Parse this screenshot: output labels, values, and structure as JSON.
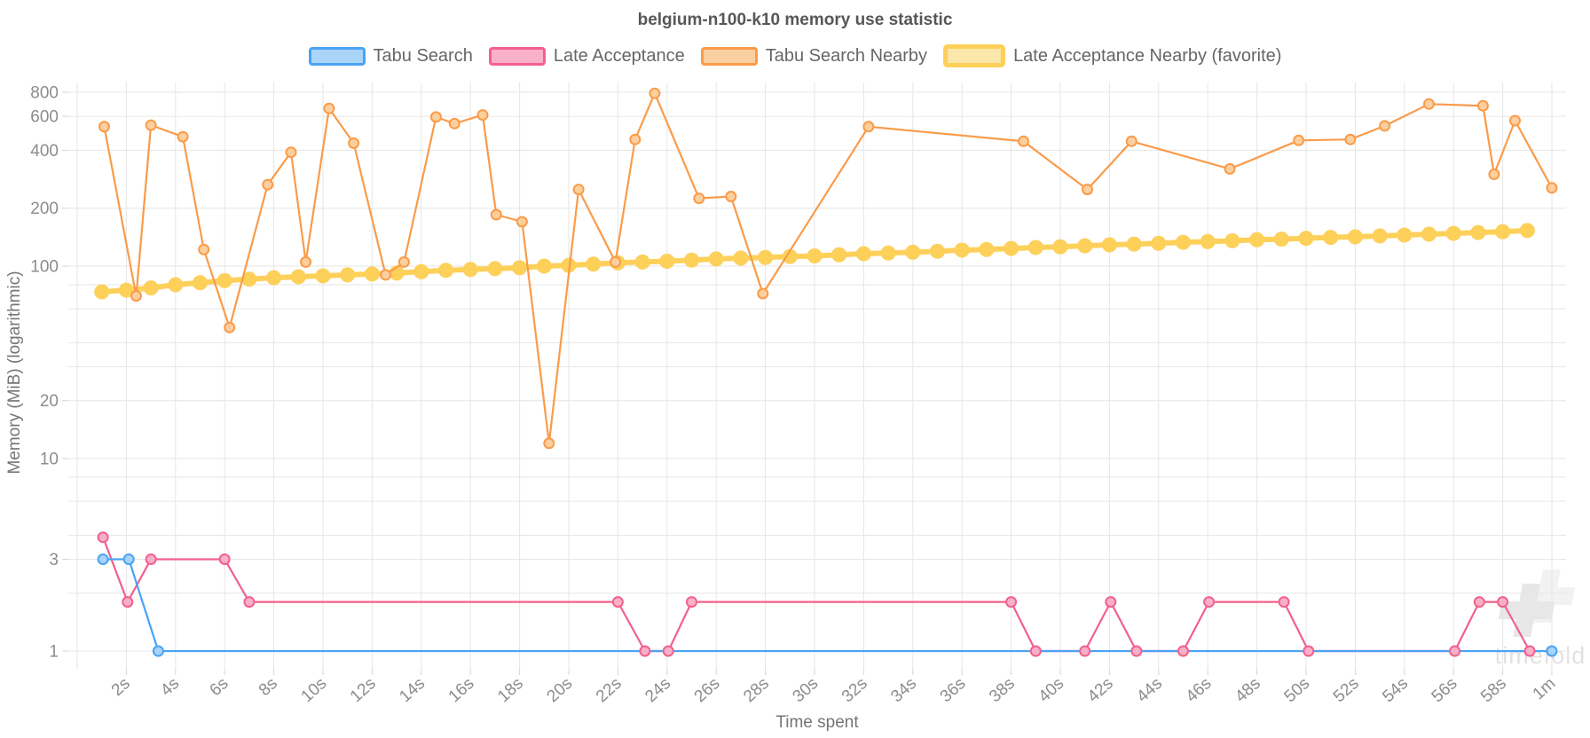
{
  "title": "belgium-n100-k10 memory use statistic",
  "legend": {
    "items": [
      {
        "label": "Tabu Search",
        "border": "#4aa3f5",
        "fill": "#abd5f8",
        "favorite": false
      },
      {
        "label": "Late Acceptance",
        "border": "#f2608c",
        "fill": "#f9b1c9",
        "favorite": false
      },
      {
        "label": "Tabu Search Nearby",
        "border": "#fa9b49",
        "fill": "#fbd0a0",
        "favorite": false
      },
      {
        "label": "Late Acceptance Nearby (favorite)",
        "border": "#fdd05a",
        "fill": "#fbe7a9",
        "favorite": true
      }
    ]
  },
  "watermark": {
    "text": "timefold"
  },
  "chart_data": {
    "type": "line",
    "title": "belgium-n100-k10 memory use statistic",
    "xlabel": "Time spent",
    "ylabel": "Memory (MiB) (logarithmic)",
    "x_unit": "seconds",
    "y_scale": "log",
    "x_range_seconds": [
      0,
      61
    ],
    "y_range": [
      1,
      900
    ],
    "grid": true,
    "legend_position": "top",
    "x_ticks": [
      {
        "t": 2,
        "label": "2s"
      },
      {
        "t": 4,
        "label": "4s"
      },
      {
        "t": 6,
        "label": "6s"
      },
      {
        "t": 8,
        "label": "8s"
      },
      {
        "t": 10,
        "label": "10s"
      },
      {
        "t": 12,
        "label": "12s"
      },
      {
        "t": 14,
        "label": "14s"
      },
      {
        "t": 16,
        "label": "16s"
      },
      {
        "t": 18,
        "label": "18s"
      },
      {
        "t": 20,
        "label": "20s"
      },
      {
        "t": 22,
        "label": "22s"
      },
      {
        "t": 24,
        "label": "24s"
      },
      {
        "t": 26,
        "label": "26s"
      },
      {
        "t": 28,
        "label": "28s"
      },
      {
        "t": 30,
        "label": "30s"
      },
      {
        "t": 32,
        "label": "32s"
      },
      {
        "t": 34,
        "label": "34s"
      },
      {
        "t": 36,
        "label": "36s"
      },
      {
        "t": 38,
        "label": "38s"
      },
      {
        "t": 40,
        "label": "40s"
      },
      {
        "t": 42,
        "label": "42s"
      },
      {
        "t": 44,
        "label": "44s"
      },
      {
        "t": 46,
        "label": "46s"
      },
      {
        "t": 48,
        "label": "48s"
      },
      {
        "t": 50,
        "label": "50s"
      },
      {
        "t": 52,
        "label": "52s"
      },
      {
        "t": 54,
        "label": "54s"
      },
      {
        "t": 56,
        "label": "56s"
      },
      {
        "t": 58,
        "label": "58s"
      },
      {
        "t": 60,
        "label": "1m"
      }
    ],
    "y_ticks_labeled": [
      800,
      600,
      400,
      200,
      100,
      20,
      10,
      3,
      1
    ],
    "y_gridlines_all": [
      800,
      600,
      400,
      200,
      100,
      80,
      60,
      40,
      30,
      20,
      10,
      8,
      6,
      4,
      3,
      2,
      1
    ],
    "series": [
      {
        "name": "Tabu Search",
        "color": "#4aa3f5",
        "marker_fill": "#a9d3f8",
        "line_width": 2.2,
        "marker_radius": 5.5,
        "points": [
          [
            1.05,
            3
          ],
          [
            2.1,
            3
          ],
          [
            3.3,
            1
          ],
          [
            60.0,
            1
          ]
        ]
      },
      {
        "name": "Late Acceptance",
        "color": "#f2608c",
        "marker_fill": "#f8b0c9",
        "line_width": 2.2,
        "marker_radius": 5.5,
        "points": [
          [
            1.05,
            3.9
          ],
          [
            2.05,
            1.8
          ],
          [
            3.0,
            3
          ],
          [
            6.0,
            3
          ],
          [
            7.0,
            1.8
          ],
          [
            22.0,
            1.8
          ],
          [
            23.1,
            1
          ],
          [
            24.05,
            1
          ],
          [
            25.0,
            1.8
          ],
          [
            38.0,
            1.8
          ],
          [
            39.0,
            1
          ],
          [
            41.0,
            1
          ],
          [
            42.05,
            1.8
          ],
          [
            43.1,
            1
          ],
          [
            45.0,
            1
          ],
          [
            46.05,
            1.8
          ],
          [
            49.1,
            1.8
          ],
          [
            50.1,
            1
          ],
          [
            56.05,
            1
          ],
          [
            57.05,
            1.8
          ],
          [
            58.0,
            1.8
          ],
          [
            59.1,
            1
          ]
        ]
      },
      {
        "name": "Tabu Search Nearby",
        "color": "#fa9b49",
        "marker_fill": "#fccf9e",
        "line_width": 2.2,
        "marker_radius": 5.5,
        "points": [
          [
            1.1,
            530
          ],
          [
            2.4,
            70
          ],
          [
            3.0,
            540
          ],
          [
            4.3,
            470
          ],
          [
            5.15,
            122
          ],
          [
            6.2,
            48
          ],
          [
            7.75,
            265
          ],
          [
            8.7,
            390
          ],
          [
            9.3,
            105
          ],
          [
            10.25,
            660
          ],
          [
            11.25,
            435
          ],
          [
            12.55,
            90
          ],
          [
            13.3,
            105
          ],
          [
            14.6,
            595
          ],
          [
            15.35,
            550
          ],
          [
            16.5,
            610
          ],
          [
            17.05,
            185
          ],
          [
            18.1,
            170
          ],
          [
            19.2,
            12
          ],
          [
            20.4,
            250
          ],
          [
            21.9,
            105
          ],
          [
            22.7,
            455
          ],
          [
            23.5,
            790
          ],
          [
            25.3,
            225
          ],
          [
            26.6,
            230
          ],
          [
            27.9,
            72
          ],
          [
            32.2,
            530
          ],
          [
            38.5,
            445
          ],
          [
            41.1,
            250
          ],
          [
            42.9,
            445
          ],
          [
            46.9,
            320
          ],
          [
            49.7,
            450
          ],
          [
            51.8,
            455
          ],
          [
            53.2,
            535
          ],
          [
            55.0,
            695
          ],
          [
            57.2,
            680
          ],
          [
            57.65,
            300
          ],
          [
            58.5,
            570
          ],
          [
            60.0,
            255
          ]
        ]
      },
      {
        "name": "Late Acceptance Nearby (favorite)",
        "color": "#fdd05a",
        "marker_fill": "#fdd05a",
        "line_width": 6,
        "marker_radius": 7.5,
        "t_start": 1,
        "t_step": 1,
        "values": [
          73.5,
          75,
          77,
          80,
          82,
          84,
          85.5,
          87,
          88,
          89,
          90,
          91,
          92,
          93.5,
          95,
          96,
          97,
          98,
          100,
          101,
          102.5,
          104,
          105,
          106,
          107.5,
          109,
          110,
          111,
          112,
          113,
          114.5,
          116,
          117,
          118,
          119.5,
          121,
          122,
          123.5,
          125,
          126,
          127.5,
          129,
          130,
          131.5,
          133,
          134,
          135.5,
          137,
          138,
          139.5,
          141,
          142,
          143.5,
          145,
          146.5,
          148,
          149.5,
          151,
          153
        ]
      }
    ]
  }
}
